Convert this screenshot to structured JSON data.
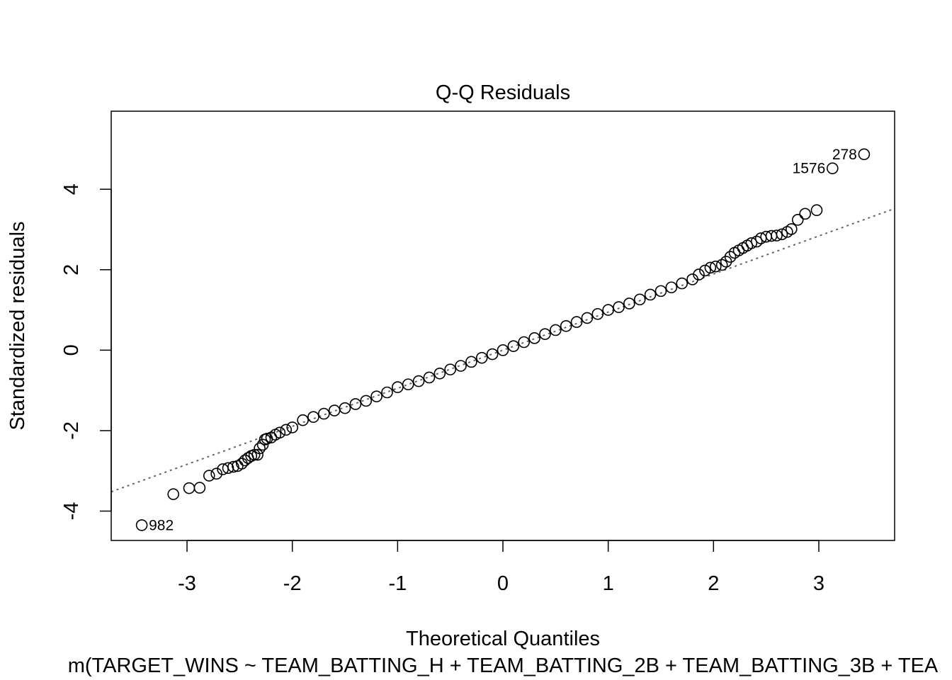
{
  "chart_data": {
    "type": "scatter",
    "title": "Q-Q Residuals",
    "xlabel": "Theoretical Quantiles",
    "ylabel": "Standardized residuals",
    "subtitle": "m(TARGET_WINS ~ TEAM_BATTING_H + TEAM_BATTING_2B + TEAM_BATTING_3B + TEA",
    "xlim": [
      -3.72,
      3.72
    ],
    "ylim": [
      -4.73,
      5.94
    ],
    "x_ticks": [
      -3,
      -2,
      -1,
      0,
      1,
      2,
      3
    ],
    "x_tick_labels": [
      "-3",
      "-2",
      "-1",
      "0",
      "1",
      "2",
      "3"
    ],
    "y_ticks": [
      -4,
      -2,
      0,
      2,
      4
    ],
    "y_tick_labels": [
      "-4",
      "-2",
      "0",
      "2",
      "4"
    ],
    "grid": false,
    "reference_line": {
      "style": "dotted",
      "color": "#666666",
      "x": [
        -3.72,
        3.72
      ],
      "y": [
        -3.52,
        3.52
      ]
    },
    "point_style": {
      "shape": "open-circle",
      "color": "#000000"
    },
    "point_labels": [
      {
        "text": "278",
        "x": 3.43,
        "y": 4.87,
        "side": "left"
      },
      {
        "text": "1576",
        "x": 3.13,
        "y": 4.52,
        "side": "left"
      },
      {
        "text": "982",
        "x": -3.43,
        "y": -4.35,
        "side": "right"
      }
    ],
    "series": [
      {
        "points": [
          [
            -3.43,
            -4.35
          ],
          [
            -3.13,
            -3.58
          ],
          [
            -2.98,
            -3.43
          ],
          [
            -2.88,
            -3.42
          ],
          [
            -2.79,
            -3.12
          ],
          [
            -2.72,
            -3.07
          ],
          [
            -2.66,
            -2.96
          ],
          [
            -2.61,
            -2.93
          ],
          [
            -2.56,
            -2.9
          ],
          [
            -2.52,
            -2.88
          ],
          [
            -2.48,
            -2.82
          ],
          [
            -2.45,
            -2.74
          ],
          [
            -2.42,
            -2.68
          ],
          [
            -2.39,
            -2.63
          ],
          [
            -2.36,
            -2.6
          ],
          [
            -2.33,
            -2.6
          ],
          [
            -2.31,
            -2.44
          ],
          [
            -2.28,
            -2.35
          ],
          [
            -2.26,
            -2.22
          ],
          [
            -2.24,
            -2.2
          ],
          [
            -2.2,
            -2.17
          ],
          [
            -2.16,
            -2.1
          ],
          [
            -2.12,
            -2.05
          ],
          [
            -2.06,
            -1.98
          ],
          [
            -2.0,
            -1.92
          ],
          [
            -1.9,
            -1.74
          ],
          [
            -1.8,
            -1.66
          ],
          [
            -1.7,
            -1.58
          ],
          [
            -1.6,
            -1.5
          ],
          [
            -1.5,
            -1.44
          ],
          [
            -1.4,
            -1.34
          ],
          [
            -1.3,
            -1.26
          ],
          [
            -1.2,
            -1.15
          ],
          [
            -1.1,
            -1.05
          ],
          [
            -1.0,
            -0.92
          ],
          [
            -0.9,
            -0.85
          ],
          [
            -0.8,
            -0.77
          ],
          [
            -0.7,
            -0.68
          ],
          [
            -0.6,
            -0.58
          ],
          [
            -0.5,
            -0.48
          ],
          [
            -0.4,
            -0.39
          ],
          [
            -0.3,
            -0.29
          ],
          [
            -0.2,
            -0.19
          ],
          [
            -0.1,
            -0.1
          ],
          [
            0.0,
            0.0
          ],
          [
            0.1,
            0.1
          ],
          [
            0.2,
            0.2
          ],
          [
            0.3,
            0.3
          ],
          [
            0.4,
            0.4
          ],
          [
            0.5,
            0.5
          ],
          [
            0.6,
            0.6
          ],
          [
            0.7,
            0.7
          ],
          [
            0.8,
            0.8
          ],
          [
            0.9,
            0.9
          ],
          [
            1.0,
            1.0
          ],
          [
            1.1,
            1.07
          ],
          [
            1.2,
            1.16
          ],
          [
            1.3,
            1.26
          ],
          [
            1.4,
            1.38
          ],
          [
            1.5,
            1.47
          ],
          [
            1.6,
            1.56
          ],
          [
            1.7,
            1.66
          ],
          [
            1.8,
            1.76
          ],
          [
            1.86,
            1.88
          ],
          [
            1.92,
            1.98
          ],
          [
            1.97,
            2.05
          ],
          [
            2.02,
            2.08
          ],
          [
            2.08,
            2.12
          ],
          [
            2.12,
            2.2
          ],
          [
            2.16,
            2.32
          ],
          [
            2.2,
            2.42
          ],
          [
            2.24,
            2.48
          ],
          [
            2.28,
            2.54
          ],
          [
            2.32,
            2.6
          ],
          [
            2.36,
            2.66
          ],
          [
            2.41,
            2.7
          ],
          [
            2.45,
            2.78
          ],
          [
            2.5,
            2.82
          ],
          [
            2.55,
            2.84
          ],
          [
            2.6,
            2.85
          ],
          [
            2.65,
            2.88
          ],
          [
            2.7,
            2.94
          ],
          [
            2.74,
            3.01
          ],
          [
            2.8,
            3.24
          ],
          [
            2.87,
            3.39
          ],
          [
            2.98,
            3.48
          ],
          [
            3.13,
            4.52
          ],
          [
            3.43,
            4.87
          ]
        ]
      }
    ]
  }
}
